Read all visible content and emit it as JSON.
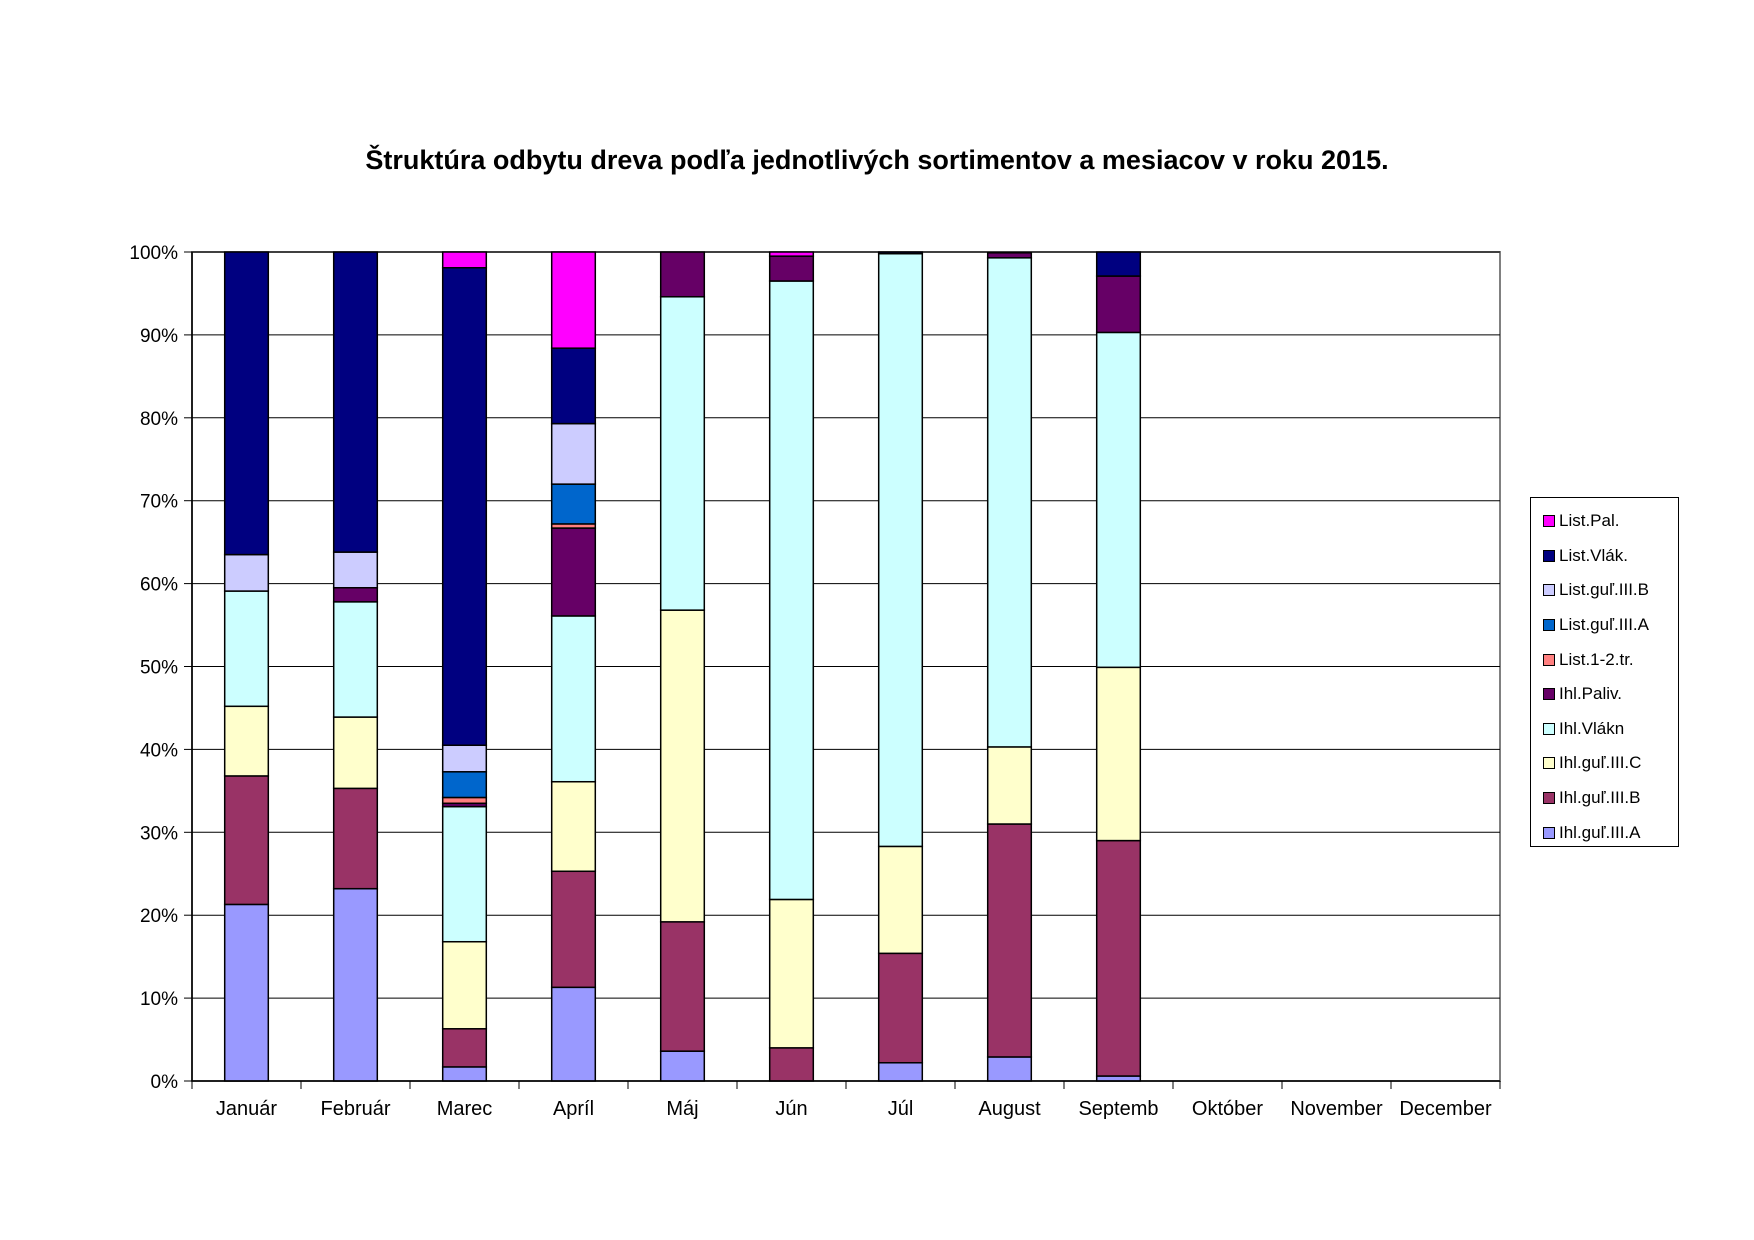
{
  "chart_data": {
    "type": "bar",
    "stacked": "percent",
    "title": "Štruktúra odbytu dreva podľa jednotlivých sortimentov a mesiacov v roku 2015.",
    "xlabel": "",
    "ylabel": "",
    "ylim": [
      0,
      100
    ],
    "yticks": [
      "0%",
      "10%",
      "20%",
      "30%",
      "40%",
      "50%",
      "60%",
      "70%",
      "80%",
      "90%",
      "100%"
    ],
    "grid": true,
    "legend_position": "right",
    "categories": [
      "Január",
      "Február",
      "Marec",
      "Apríl",
      "Máj",
      "Jún",
      "Júl",
      "August",
      "Septemb",
      "Október",
      "November",
      "December"
    ],
    "series": [
      {
        "name": "Ihl.guľ.III.A",
        "color": "#9999FF",
        "values": [
          21.3,
          23.2,
          1.7,
          11.3,
          3.6,
          0,
          2.2,
          2.9,
          0.6,
          0,
          0,
          0
        ]
      },
      {
        "name": "Ihl.guľ.III.B",
        "color": "#993366",
        "values": [
          15.5,
          12.1,
          4.6,
          14.0,
          15.6,
          4.0,
          13.2,
          28.1,
          28.4,
          0,
          0,
          0
        ]
      },
      {
        "name": "Ihl.guľ.III.C",
        "color": "#FFFFCC",
        "values": [
          8.4,
          8.6,
          10.5,
          10.8,
          37.6,
          17.9,
          12.9,
          9.3,
          20.9,
          0,
          0,
          0
        ]
      },
      {
        "name": "Ihl.Vlákn",
        "color": "#CCFFFF",
        "values": [
          13.9,
          13.9,
          16.3,
          20.0,
          37.8,
          74.6,
          71.5,
          59.0,
          40.4,
          0,
          0,
          0
        ]
      },
      {
        "name": "Ihl.Paliv.",
        "color": "#660066",
        "values": [
          0,
          1.7,
          0.4,
          10.6,
          5.4,
          3.0,
          0,
          0.6,
          6.8,
          0,
          0,
          0
        ]
      },
      {
        "name": "List.1-2.tr.",
        "color": "#FF8080",
        "values": [
          0,
          0,
          0.7,
          0.5,
          0,
          0,
          0,
          0,
          0,
          0,
          0,
          0
        ]
      },
      {
        "name": "List.guľ.III.A",
        "color": "#0066CC",
        "values": [
          0,
          0,
          3.1,
          4.8,
          0,
          0,
          0,
          0,
          0,
          0,
          0,
          0
        ]
      },
      {
        "name": "List.guľ.III.B",
        "color": "#CCCCFF",
        "values": [
          4.4,
          4.3,
          3.2,
          7.3,
          0,
          0,
          0,
          0,
          0,
          0,
          0,
          0
        ]
      },
      {
        "name": "List.Vlák.",
        "color": "#000080",
        "values": [
          36.5,
          36.2,
          57.6,
          9.1,
          0,
          0,
          0.2,
          0,
          2.9,
          0,
          0,
          0
        ]
      },
      {
        "name": "List.Pal.",
        "color": "#FF00FF",
        "values": [
          0,
          0,
          1.9,
          11.6,
          0,
          0.5,
          0,
          0,
          0,
          0,
          0,
          0
        ]
      }
    ]
  }
}
